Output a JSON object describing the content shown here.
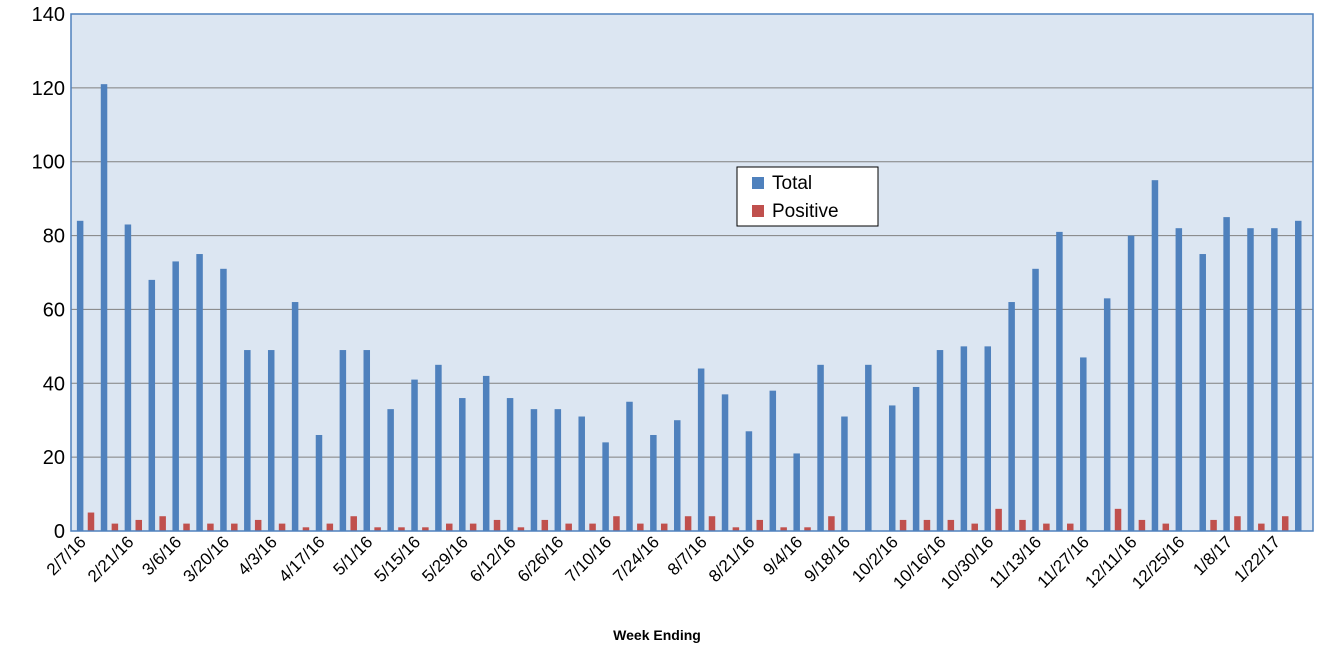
{
  "chart_data": {
    "type": "bar",
    "xlabel": "Week Ending",
    "ylabel": "",
    "ylim": [
      0,
      140
    ],
    "yticks": [
      0,
      20,
      40,
      60,
      80,
      100,
      120,
      140
    ],
    "grid": true,
    "legend_position": "center-right",
    "colors": {
      "Total": "#4F81BD",
      "Positive": "#C0504D",
      "plot_background": "#DCE6F2",
      "plot_border": "#4F81BD",
      "gridline": "#808080"
    },
    "categories": [
      "2/7/16",
      "2/14/16",
      "2/21/16",
      "2/28/16",
      "3/6/16",
      "3/13/16",
      "3/20/16",
      "3/27/16",
      "4/3/16",
      "4/10/16",
      "4/17/16",
      "4/24/16",
      "5/1/16",
      "5/8/16",
      "5/15/16",
      "5/22/16",
      "5/29/16",
      "6/5/16",
      "6/12/16",
      "6/19/16",
      "6/26/16",
      "7/3/16",
      "7/10/16",
      "7/17/16",
      "7/24/16",
      "7/31/16",
      "8/7/16",
      "8/14/16",
      "8/21/16",
      "8/28/16",
      "9/4/16",
      "9/11/16",
      "9/18/16",
      "9/25/16",
      "10/2/16",
      "10/9/16",
      "10/16/16",
      "10/23/16",
      "10/30/16",
      "11/6/16",
      "11/13/16",
      "11/20/16",
      "11/27/16",
      "12/4/16",
      "12/11/16",
      "12/18/16",
      "12/25/16",
      "1/1/17",
      "1/8/17",
      "1/15/17",
      "1/22/17",
      "1/29/17"
    ],
    "shown_tick_labels": [
      "2/7/16",
      "2/21/16",
      "3/6/16",
      "3/20/16",
      "4/3/16",
      "4/17/16",
      "5/1/16",
      "5/15/16",
      "5/29/16",
      "6/12/16",
      "6/26/16",
      "7/10/16",
      "7/24/16",
      "8/7/16",
      "8/21/16",
      "9/4/16",
      "9/18/16",
      "10/2/16",
      "10/16/16",
      "10/30/16",
      "11/13/16",
      "11/27/16",
      "12/11/16",
      "12/25/16",
      "1/8/17",
      "1/22/17"
    ],
    "series": [
      {
        "name": "Total",
        "values": [
          84,
          121,
          83,
          68,
          73,
          75,
          71,
          49,
          49,
          62,
          26,
          49,
          49,
          33,
          41,
          45,
          36,
          42,
          36,
          33,
          33,
          31,
          24,
          35,
          26,
          30,
          44,
          37,
          27,
          38,
          21,
          45,
          31,
          45,
          34,
          39,
          49,
          50,
          50,
          62,
          71,
          81,
          47,
          63,
          80,
          95,
          82,
          75,
          85,
          82,
          82,
          84
        ]
      },
      {
        "name": "Positive",
        "values": [
          5,
          2,
          3,
          4,
          2,
          2,
          2,
          3,
          2,
          1,
          2,
          4,
          1,
          1,
          1,
          2,
          2,
          3,
          1,
          3,
          2,
          2,
          4,
          2,
          2,
          4,
          4,
          1,
          3,
          1,
          1,
          4,
          0,
          0,
          3,
          3,
          3,
          2,
          6,
          3,
          2,
          2,
          0,
          6,
          3,
          2,
          0,
          3,
          4,
          2,
          4,
          0
        ]
      }
    ]
  }
}
